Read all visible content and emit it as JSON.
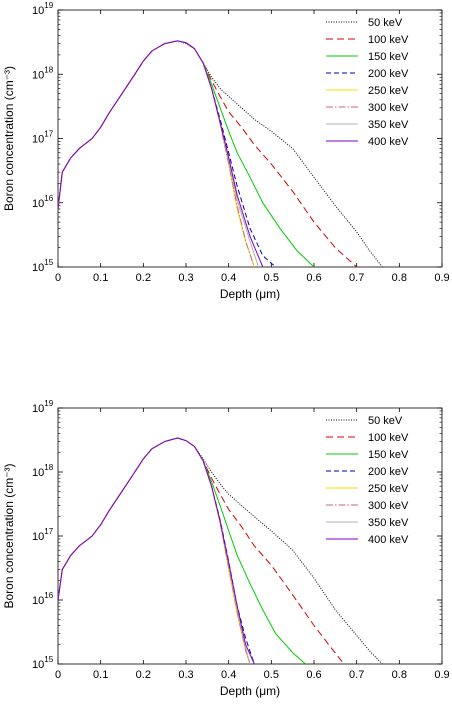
{
  "chart_data": [
    {
      "type": "line",
      "xlabel": "Depth (μm)",
      "ylabel": "Boron concentration (cm⁻³)",
      "xlim": [
        0,
        0.9
      ],
      "ylim": [
        1000000000000000.0,
        1e+19
      ],
      "yscale": "log",
      "xticks": [
        "0",
        "0.1",
        "0.2",
        "0.3",
        "0.4",
        "0.5",
        "0.6",
        "0.7",
        "0.8",
        "0.9"
      ],
      "yticks": [
        {
          "base": "10",
          "exp": "15"
        },
        {
          "base": "10",
          "exp": "16"
        },
        {
          "base": "10",
          "exp": "17"
        },
        {
          "base": "10",
          "exp": "18"
        },
        {
          "base": "10",
          "exp": "19"
        }
      ],
      "legend_position": "top-right",
      "series": [
        {
          "name": "50 keV",
          "color": "#000000",
          "dash": "1,1.5",
          "x": [
            0.0,
            0.01,
            0.03,
            0.05,
            0.08,
            0.1,
            0.12,
            0.15,
            0.18,
            0.2,
            0.22,
            0.25,
            0.28,
            0.3,
            0.32,
            0.34,
            0.36,
            0.38,
            0.4,
            0.43,
            0.46,
            0.5,
            0.55,
            0.6,
            0.65,
            0.7,
            0.73,
            0.76
          ],
          "y": [
            8000000000000000.0,
            3e+16,
            5e+16,
            7e+16,
            1e+17,
            1.5e+17,
            2.5e+17,
            5e+17,
            1e+18,
            1.6e+18,
            2.3e+18,
            3e+18,
            3.3e+18,
            3e+18,
            2.5e+18,
            1.5e+18,
            9e+17,
            6e+17,
            4.5e+17,
            3e+17,
            2e+17,
            1.3e+17,
            7e+16,
            2.5e+16,
            9000000000000000.0,
            3500000000000000.0,
            1800000000000000.0,
            1000000000000000.0
          ]
        },
        {
          "name": "100 keV",
          "color": "#d40000",
          "dash": "7,4",
          "x": [
            0.0,
            0.01,
            0.03,
            0.05,
            0.08,
            0.1,
            0.12,
            0.15,
            0.18,
            0.2,
            0.22,
            0.25,
            0.28,
            0.3,
            0.32,
            0.34,
            0.36,
            0.38,
            0.4,
            0.43,
            0.46,
            0.5,
            0.55,
            0.6,
            0.65,
            0.7
          ],
          "y": [
            8000000000000000.0,
            3e+16,
            5e+16,
            7e+16,
            1e+17,
            1.5e+17,
            2.5e+17,
            5e+17,
            1e+18,
            1.6e+18,
            2.3e+18,
            3e+18,
            3.3e+18,
            3.1e+18,
            2.5e+18,
            1.5e+18,
            8e+17,
            4.5e+17,
            2.6e+17,
            1.5e+17,
            8e+16,
            4e+16,
            1.5e+16,
            5000000000000000.0,
            2000000000000000.0,
            1000000000000000.0
          ]
        },
        {
          "name": "150 keV",
          "color": "#00cc00",
          "dash": "",
          "x": [
            0.0,
            0.01,
            0.03,
            0.05,
            0.08,
            0.1,
            0.12,
            0.15,
            0.18,
            0.2,
            0.22,
            0.25,
            0.28,
            0.3,
            0.32,
            0.34,
            0.36,
            0.38,
            0.4,
            0.42,
            0.45,
            0.48,
            0.52,
            0.56,
            0.6
          ],
          "y": [
            8000000000000000.0,
            3e+16,
            5e+16,
            7e+16,
            1e+17,
            1.5e+17,
            2.5e+17,
            5e+17,
            1e+18,
            1.6e+18,
            2.3e+18,
            3e+18,
            3.3e+18,
            3.1e+18,
            2.5e+18,
            1.5e+18,
            7e+17,
            3e+17,
            1.3e+17,
            6e+16,
            2.5e+16,
            1e+16,
            4000000000000000.0,
            1800000000000000.0,
            1000000000000000.0
          ]
        },
        {
          "name": "200 keV",
          "color": "#0000aa",
          "dash": "5,3",
          "x": [
            0.0,
            0.01,
            0.03,
            0.05,
            0.08,
            0.1,
            0.12,
            0.15,
            0.18,
            0.2,
            0.22,
            0.25,
            0.28,
            0.3,
            0.32,
            0.34,
            0.36,
            0.38,
            0.4,
            0.42,
            0.45,
            0.48,
            0.51
          ],
          "y": [
            8000000000000000.0,
            3e+16,
            5e+16,
            7e+16,
            1e+17,
            1.5e+17,
            2.5e+17,
            5e+17,
            1e+18,
            1.6e+18,
            2.3e+18,
            3e+18,
            3.3e+18,
            3.1e+18,
            2.5e+18,
            1.5e+18,
            6e+17,
            2e+17,
            6e+16,
            1.8e+16,
            4000000000000000.0,
            1500000000000000.0,
            1000000000000000.0
          ]
        },
        {
          "name": "250 keV",
          "color": "#ffd700",
          "dash": "",
          "x": [
            0.0,
            0.01,
            0.03,
            0.05,
            0.08,
            0.1,
            0.12,
            0.15,
            0.18,
            0.2,
            0.22,
            0.25,
            0.28,
            0.3,
            0.32,
            0.34,
            0.36,
            0.38,
            0.4,
            0.42,
            0.44,
            0.46
          ],
          "y": [
            8000000000000000.0,
            3e+16,
            5e+16,
            7e+16,
            1e+17,
            1.5e+17,
            2.5e+17,
            5e+17,
            1e+18,
            1.6e+18,
            2.3e+18,
            3e+18,
            3.3e+18,
            3.1e+18,
            2.5e+18,
            1.5e+18,
            6e+17,
            1.7e+17,
            4e+16,
            8000000000000000.0,
            2500000000000000.0,
            1000000000000000.0
          ]
        },
        {
          "name": "300 keV",
          "color": "#cc6677",
          "dash": "7,2,1.5,2",
          "x": [
            0.0,
            0.01,
            0.03,
            0.05,
            0.08,
            0.1,
            0.12,
            0.15,
            0.18,
            0.2,
            0.22,
            0.25,
            0.28,
            0.3,
            0.32,
            0.34,
            0.36,
            0.38,
            0.4,
            0.42,
            0.44,
            0.46
          ],
          "y": [
            8000000000000000.0,
            3e+16,
            5e+16,
            7e+16,
            1e+17,
            1.5e+17,
            2.5e+17,
            5e+17,
            1e+18,
            1.6e+18,
            2.3e+18,
            3e+18,
            3.3e+18,
            3.1e+18,
            2.5e+18,
            1.5e+18,
            6e+17,
            1.7e+17,
            4e+16,
            9000000000000000.0,
            2500000000000000.0,
            1000000000000000.0
          ]
        },
        {
          "name": "350 keV",
          "color": "#b0b0b0",
          "dash": "",
          "x": [
            0.0,
            0.01,
            0.03,
            0.05,
            0.08,
            0.1,
            0.12,
            0.15,
            0.18,
            0.2,
            0.22,
            0.25,
            0.28,
            0.3,
            0.32,
            0.34,
            0.36,
            0.38,
            0.4,
            0.42,
            0.45,
            0.47
          ],
          "y": [
            8000000000000000.0,
            3e+16,
            5e+16,
            7e+16,
            1e+17,
            1.5e+17,
            2.5e+17,
            5e+17,
            1e+18,
            1.6e+18,
            2.3e+18,
            3e+18,
            3.3e+18,
            3.1e+18,
            2.5e+18,
            1.5e+18,
            6e+17,
            1.8e+17,
            4.5e+16,
            1.1e+16,
            2500000000000000.0,
            1000000000000000.0
          ]
        },
        {
          "name": "400 keV",
          "color": "#8000c0",
          "dash": "",
          "x": [
            0.0,
            0.01,
            0.03,
            0.05,
            0.08,
            0.1,
            0.12,
            0.15,
            0.18,
            0.2,
            0.22,
            0.25,
            0.28,
            0.3,
            0.32,
            0.34,
            0.36,
            0.38,
            0.4,
            0.42,
            0.45,
            0.48
          ],
          "y": [
            8000000000000000.0,
            3e+16,
            5e+16,
            7e+16,
            1e+17,
            1.5e+17,
            2.5e+17,
            5e+17,
            1e+18,
            1.6e+18,
            2.3e+18,
            3e+18,
            3.3e+18,
            3.1e+18,
            2.5e+18,
            1.5e+18,
            6e+17,
            1.8e+17,
            5e+16,
            1.3e+16,
            3000000000000000.0,
            1000000000000000.0
          ]
        }
      ]
    },
    {
      "type": "line",
      "xlabel": "Depth (μm)",
      "ylabel": "Boron concentration (cm⁻³)",
      "xlim": [
        0,
        0.9
      ],
      "ylim": [
        1000000000000000.0,
        1e+19
      ],
      "yscale": "log",
      "xticks": [
        "0",
        "0.1",
        "0.2",
        "0.3",
        "0.4",
        "0.5",
        "0.6",
        "0.7",
        "0.8",
        "0.9"
      ],
      "yticks": [
        {
          "base": "10",
          "exp": "15"
        },
        {
          "base": "10",
          "exp": "16"
        },
        {
          "base": "10",
          "exp": "17"
        },
        {
          "base": "10",
          "exp": "18"
        },
        {
          "base": "10",
          "exp": "19"
        }
      ],
      "legend_position": "top-right",
      "series": [
        {
          "name": "50 keV",
          "color": "#000000",
          "dash": "1,1.5",
          "x": [
            0.0,
            0.01,
            0.03,
            0.05,
            0.08,
            0.1,
            0.12,
            0.15,
            0.18,
            0.2,
            0.22,
            0.25,
            0.28,
            0.3,
            0.32,
            0.34,
            0.36,
            0.38,
            0.4,
            0.43,
            0.46,
            0.5,
            0.55,
            0.6,
            0.65,
            0.7,
            0.73,
            0.76
          ],
          "y": [
            1e+16,
            3e+16,
            5e+16,
            7e+16,
            1e+17,
            1.5e+17,
            2.5e+17,
            5e+17,
            1e+18,
            1.6e+18,
            2.3e+18,
            3e+18,
            3.4e+18,
            3.1e+18,
            2.5e+18,
            1.6e+18,
            1e+18,
            6.5e+17,
            4.5e+17,
            3e+17,
            2e+17,
            1.2e+17,
            6e+16,
            2.2e+16,
            7000000000000000.0,
            2800000000000000.0,
            1600000000000000.0,
            1000000000000000.0
          ]
        },
        {
          "name": "100 keV",
          "color": "#d40000",
          "dash": "7,4",
          "x": [
            0.0,
            0.01,
            0.03,
            0.05,
            0.08,
            0.1,
            0.12,
            0.15,
            0.18,
            0.2,
            0.22,
            0.25,
            0.28,
            0.3,
            0.32,
            0.34,
            0.36,
            0.38,
            0.4,
            0.43,
            0.46,
            0.5,
            0.55,
            0.6,
            0.64,
            0.67
          ],
          "y": [
            1e+16,
            3e+16,
            5e+16,
            7e+16,
            1e+17,
            1.5e+17,
            2.5e+17,
            5e+17,
            1e+18,
            1.6e+18,
            2.3e+18,
            3e+18,
            3.4e+18,
            3.1e+18,
            2.5e+18,
            1.5e+18,
            8e+17,
            4.5e+17,
            2.6e+17,
            1.4e+17,
            7e+16,
            3.5e+16,
            1.2e+16,
            4000000000000000.0,
            1800000000000000.0,
            1000000000000000.0
          ]
        },
        {
          "name": "150 keV",
          "color": "#00cc00",
          "dash": "",
          "x": [
            0.0,
            0.01,
            0.03,
            0.05,
            0.08,
            0.1,
            0.12,
            0.15,
            0.18,
            0.2,
            0.22,
            0.25,
            0.28,
            0.3,
            0.32,
            0.34,
            0.36,
            0.38,
            0.4,
            0.42,
            0.45,
            0.48,
            0.51,
            0.55,
            0.58
          ],
          "y": [
            1e+16,
            3e+16,
            5e+16,
            7e+16,
            1e+17,
            1.5e+17,
            2.5e+17,
            5e+17,
            1e+18,
            1.6e+18,
            2.3e+18,
            3e+18,
            3.4e+18,
            3.1e+18,
            2.5e+18,
            1.5e+18,
            7e+17,
            3e+17,
            1.2e+17,
            5e+16,
            1.8e+16,
            7000000000000000.0,
            3000000000000000.0,
            1500000000000000.0,
            1000000000000000.0
          ]
        },
        {
          "name": "200 keV",
          "color": "#0000aa",
          "dash": "5,3",
          "x": [
            0.0,
            0.01,
            0.03,
            0.05,
            0.08,
            0.1,
            0.12,
            0.15,
            0.18,
            0.2,
            0.22,
            0.25,
            0.28,
            0.3,
            0.32,
            0.34,
            0.36,
            0.38,
            0.4,
            0.42,
            0.44,
            0.46
          ],
          "y": [
            1e+16,
            3e+16,
            5e+16,
            7e+16,
            1e+17,
            1.5e+17,
            2.5e+17,
            5e+17,
            1e+18,
            1.6e+18,
            2.3e+18,
            3e+18,
            3.4e+18,
            3.1e+18,
            2.5e+18,
            1.5e+18,
            6e+17,
            1.8e+17,
            4e+16,
            8000000000000000.0,
            2500000000000000.0,
            1000000000000000.0
          ]
        },
        {
          "name": "250 keV",
          "color": "#ffd700",
          "dash": "",
          "x": [
            0.0,
            0.01,
            0.03,
            0.05,
            0.08,
            0.1,
            0.12,
            0.15,
            0.18,
            0.2,
            0.22,
            0.25,
            0.28,
            0.3,
            0.32,
            0.34,
            0.36,
            0.38,
            0.4,
            0.42,
            0.44,
            0.45
          ],
          "y": [
            1e+16,
            3e+16,
            5e+16,
            7e+16,
            1e+17,
            1.5e+17,
            2.5e+17,
            5e+17,
            1e+18,
            1.6e+18,
            2.3e+18,
            3e+18,
            3.4e+18,
            3.1e+18,
            2.5e+18,
            1.5e+18,
            6e+17,
            1.6e+17,
            3e+16,
            6000000000000000.0,
            1600000000000000.0,
            1000000000000000.0
          ]
        },
        {
          "name": "300 keV",
          "color": "#cc6677",
          "dash": "7,2,1.5,2",
          "x": [
            0.0,
            0.01,
            0.03,
            0.05,
            0.08,
            0.1,
            0.12,
            0.15,
            0.18,
            0.2,
            0.22,
            0.25,
            0.28,
            0.3,
            0.32,
            0.34,
            0.36,
            0.38,
            0.4,
            0.42,
            0.44,
            0.45
          ],
          "y": [
            1e+16,
            3e+16,
            5e+16,
            7e+16,
            1e+17,
            1.5e+17,
            2.5e+17,
            5e+17,
            1e+18,
            1.6e+18,
            2.3e+18,
            3e+18,
            3.4e+18,
            3.1e+18,
            2.5e+18,
            1.5e+18,
            6e+17,
            1.6e+17,
            3.2e+16,
            6500000000000000.0,
            1600000000000000.0,
            1000000000000000.0
          ]
        },
        {
          "name": "350 keV",
          "color": "#b0b0b0",
          "dash": "",
          "x": [
            0.0,
            0.01,
            0.03,
            0.05,
            0.08,
            0.1,
            0.12,
            0.15,
            0.18,
            0.2,
            0.22,
            0.25,
            0.28,
            0.3,
            0.32,
            0.34,
            0.36,
            0.38,
            0.4,
            0.42,
            0.44,
            0.45
          ],
          "y": [
            1e+16,
            3e+16,
            5e+16,
            7e+16,
            1e+17,
            1.5e+17,
            2.5e+17,
            5e+17,
            1e+18,
            1.6e+18,
            2.3e+18,
            3e+18,
            3.4e+18,
            3.1e+18,
            2.5e+18,
            1.5e+18,
            6e+17,
            1.7e+17,
            3.5e+16,
            7000000000000000.0,
            1800000000000000.0,
            1000000000000000.0
          ]
        },
        {
          "name": "400 keV",
          "color": "#8000c0",
          "dash": "",
          "x": [
            0.0,
            0.01,
            0.03,
            0.05,
            0.08,
            0.1,
            0.12,
            0.15,
            0.18,
            0.2,
            0.22,
            0.25,
            0.28,
            0.3,
            0.32,
            0.34,
            0.36,
            0.38,
            0.4,
            0.42,
            0.44,
            0.46
          ],
          "y": [
            1e+16,
            3e+16,
            5e+16,
            7e+16,
            1e+17,
            1.5e+17,
            2.5e+17,
            5e+17,
            1e+18,
            1.6e+18,
            2.3e+18,
            3e+18,
            3.4e+18,
            3.1e+18,
            2.5e+18,
            1.5e+18,
            6e+17,
            1.7e+17,
            3.8e+16,
            8000000000000000.0,
            2000000000000000.0,
            1000000000000000.0
          ]
        }
      ]
    }
  ]
}
